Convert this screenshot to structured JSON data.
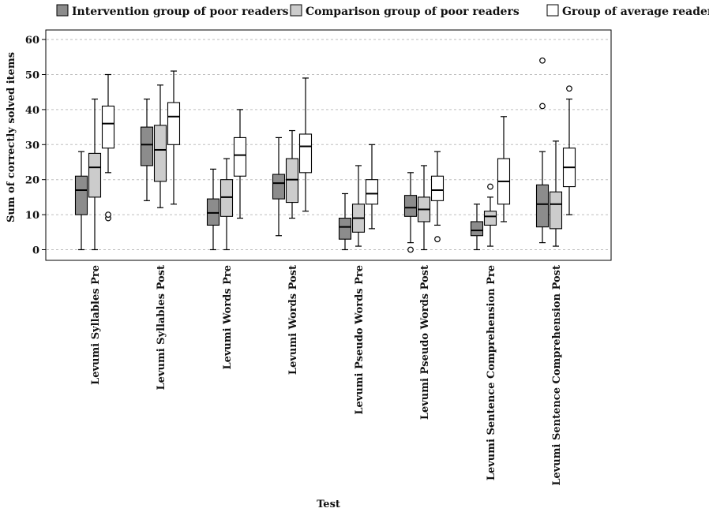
{
  "chart_data": {
    "type": "boxplot",
    "xlabel": "Test",
    "ylabel": "Sum of correctly solved items",
    "ylim": [
      0,
      60
    ],
    "yticks": [
      0,
      10,
      20,
      30,
      40,
      50,
      60
    ],
    "grid": true,
    "legend_position": "top",
    "categories": [
      "Levumi Syllables Pre",
      "Levumi Syllables Post",
      "Levumi Words Pre",
      "Levumi Words Post",
      "Levumi Pseudo Words Pre",
      "Levumi Pseudo Words Post",
      "Levumi Sentence Comprehension Pre",
      "Levumi Sentence Comprehension Post"
    ],
    "series": [
      {
        "name": "Intervention group of poor readers",
        "color": "#8c8c8c",
        "boxes": [
          {
            "min": 0,
            "q1": 10,
            "median": 17,
            "q3": 21,
            "max": 28,
            "outliers": []
          },
          {
            "min": 14,
            "q1": 24,
            "median": 30,
            "q3": 35,
            "max": 43,
            "outliers": []
          },
          {
            "min": 0,
            "q1": 7,
            "median": 10.5,
            "q3": 14.5,
            "max": 23,
            "outliers": []
          },
          {
            "min": 4,
            "q1": 14.5,
            "median": 19,
            "q3": 21.5,
            "max": 32,
            "outliers": []
          },
          {
            "min": 0,
            "q1": 3,
            "median": 6.5,
            "q3": 9,
            "max": 16,
            "outliers": []
          },
          {
            "min": 2,
            "q1": 9.5,
            "median": 12,
            "q3": 15.5,
            "max": 22,
            "outliers": [
              0
            ]
          },
          {
            "min": 0,
            "q1": 4,
            "median": 5.5,
            "q3": 8,
            "max": 13,
            "outliers": []
          },
          {
            "min": 2,
            "q1": 6.5,
            "median": 13,
            "q3": 18.5,
            "max": 28,
            "outliers": [
              41,
              54
            ]
          }
        ]
      },
      {
        "name": "Comparison group of poor readers",
        "color": "#cccccc",
        "boxes": [
          {
            "min": 0,
            "q1": 15,
            "median": 23.5,
            "q3": 27.5,
            "max": 43,
            "outliers": []
          },
          {
            "min": 12,
            "q1": 19.5,
            "median": 28.5,
            "q3": 35.5,
            "max": 47,
            "outliers": []
          },
          {
            "min": 0,
            "q1": 9.5,
            "median": 15,
            "q3": 20,
            "max": 26,
            "outliers": []
          },
          {
            "min": 9,
            "q1": 13.5,
            "median": 20,
            "q3": 26,
            "max": 34,
            "outliers": []
          },
          {
            "min": 1,
            "q1": 5,
            "median": 9,
            "q3": 13,
            "max": 24,
            "outliers": []
          },
          {
            "min": 0,
            "q1": 8,
            "median": 11.5,
            "q3": 15,
            "max": 24,
            "outliers": []
          },
          {
            "min": 1,
            "q1": 7,
            "median": 9.5,
            "q3": 11,
            "max": 15,
            "outliers": [
              18
            ]
          },
          {
            "min": 1,
            "q1": 6,
            "median": 13,
            "q3": 16.5,
            "max": 31,
            "outliers": []
          }
        ]
      },
      {
        "name": "Group of average readers",
        "color": "#ffffff",
        "boxes": [
          {
            "min": 22,
            "q1": 29,
            "median": 36,
            "q3": 41,
            "max": 50,
            "outliers": [
              9,
              10
            ]
          },
          {
            "min": 13,
            "q1": 30,
            "median": 38,
            "q3": 42,
            "max": 51,
            "outliers": []
          },
          {
            "min": 9,
            "q1": 21,
            "median": 27,
            "q3": 32,
            "max": 40,
            "outliers": []
          },
          {
            "min": 11,
            "q1": 22,
            "median": 29.5,
            "q3": 33,
            "max": 49,
            "outliers": []
          },
          {
            "min": 6,
            "q1": 13,
            "median": 16,
            "q3": 20,
            "max": 30,
            "outliers": []
          },
          {
            "min": 7,
            "q1": 14,
            "median": 17,
            "q3": 21,
            "max": 28,
            "outliers": [
              3
            ]
          },
          {
            "min": 8,
            "q1": 13,
            "median": 19.5,
            "q3": 26,
            "max": 38,
            "outliers": []
          },
          {
            "min": 10,
            "q1": 18,
            "median": 23.5,
            "q3": 29,
            "max": 43,
            "outliers": [
              46
            ]
          }
        ]
      }
    ]
  }
}
